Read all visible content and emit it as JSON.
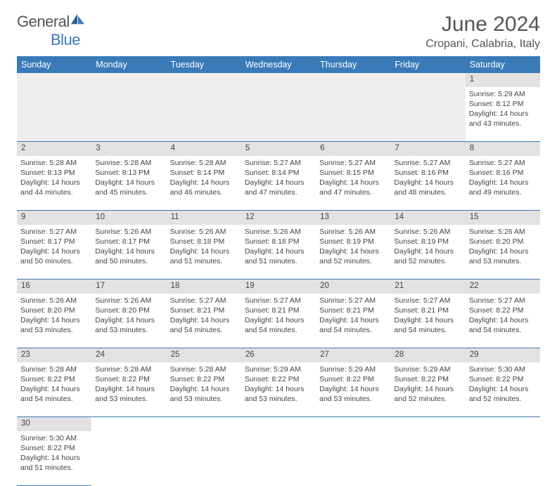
{
  "brand": {
    "name_a": "General",
    "name_b": "Blue"
  },
  "title": {
    "month": "June 2024",
    "location": "Cropani, Calabria, Italy"
  },
  "colors": {
    "header_bg": "#3a7ab8",
    "daynum_bg": "#e2e2e2",
    "border": "#3a7ab8"
  },
  "day_headers": [
    "Sunday",
    "Monday",
    "Tuesday",
    "Wednesday",
    "Thursday",
    "Friday",
    "Saturday"
  ],
  "weeks": [
    [
      null,
      null,
      null,
      null,
      null,
      null,
      {
        "n": "1",
        "sr": "Sunrise: 5:29 AM",
        "ss": "Sunset: 8:12 PM",
        "d1": "Daylight: 14 hours",
        "d2": "and 43 minutes."
      }
    ],
    [
      {
        "n": "2",
        "sr": "Sunrise: 5:28 AM",
        "ss": "Sunset: 8:13 PM",
        "d1": "Daylight: 14 hours",
        "d2": "and 44 minutes."
      },
      {
        "n": "3",
        "sr": "Sunrise: 5:28 AM",
        "ss": "Sunset: 8:13 PM",
        "d1": "Daylight: 14 hours",
        "d2": "and 45 minutes."
      },
      {
        "n": "4",
        "sr": "Sunrise: 5:28 AM",
        "ss": "Sunset: 8:14 PM",
        "d1": "Daylight: 14 hours",
        "d2": "and 46 minutes."
      },
      {
        "n": "5",
        "sr": "Sunrise: 5:27 AM",
        "ss": "Sunset: 8:14 PM",
        "d1": "Daylight: 14 hours",
        "d2": "and 47 minutes."
      },
      {
        "n": "6",
        "sr": "Sunrise: 5:27 AM",
        "ss": "Sunset: 8:15 PM",
        "d1": "Daylight: 14 hours",
        "d2": "and 47 minutes."
      },
      {
        "n": "7",
        "sr": "Sunrise: 5:27 AM",
        "ss": "Sunset: 8:16 PM",
        "d1": "Daylight: 14 hours",
        "d2": "and 48 minutes."
      },
      {
        "n": "8",
        "sr": "Sunrise: 5:27 AM",
        "ss": "Sunset: 8:16 PM",
        "d1": "Daylight: 14 hours",
        "d2": "and 49 minutes."
      }
    ],
    [
      {
        "n": "9",
        "sr": "Sunrise: 5:27 AM",
        "ss": "Sunset: 8:17 PM",
        "d1": "Daylight: 14 hours",
        "d2": "and 50 minutes."
      },
      {
        "n": "10",
        "sr": "Sunrise: 5:26 AM",
        "ss": "Sunset: 8:17 PM",
        "d1": "Daylight: 14 hours",
        "d2": "and 50 minutes."
      },
      {
        "n": "11",
        "sr": "Sunrise: 5:26 AM",
        "ss": "Sunset: 8:18 PM",
        "d1": "Daylight: 14 hours",
        "d2": "and 51 minutes."
      },
      {
        "n": "12",
        "sr": "Sunrise: 5:26 AM",
        "ss": "Sunset: 8:18 PM",
        "d1": "Daylight: 14 hours",
        "d2": "and 51 minutes."
      },
      {
        "n": "13",
        "sr": "Sunrise: 5:26 AM",
        "ss": "Sunset: 8:19 PM",
        "d1": "Daylight: 14 hours",
        "d2": "and 52 minutes."
      },
      {
        "n": "14",
        "sr": "Sunrise: 5:26 AM",
        "ss": "Sunset: 8:19 PM",
        "d1": "Daylight: 14 hours",
        "d2": "and 52 minutes."
      },
      {
        "n": "15",
        "sr": "Sunrise: 5:26 AM",
        "ss": "Sunset: 8:20 PM",
        "d1": "Daylight: 14 hours",
        "d2": "and 53 minutes."
      }
    ],
    [
      {
        "n": "16",
        "sr": "Sunrise: 5:26 AM",
        "ss": "Sunset: 8:20 PM",
        "d1": "Daylight: 14 hours",
        "d2": "and 53 minutes."
      },
      {
        "n": "17",
        "sr": "Sunrise: 5:26 AM",
        "ss": "Sunset: 8:20 PM",
        "d1": "Daylight: 14 hours",
        "d2": "and 53 minutes."
      },
      {
        "n": "18",
        "sr": "Sunrise: 5:27 AM",
        "ss": "Sunset: 8:21 PM",
        "d1": "Daylight: 14 hours",
        "d2": "and 54 minutes."
      },
      {
        "n": "19",
        "sr": "Sunrise: 5:27 AM",
        "ss": "Sunset: 8:21 PM",
        "d1": "Daylight: 14 hours",
        "d2": "and 54 minutes."
      },
      {
        "n": "20",
        "sr": "Sunrise: 5:27 AM",
        "ss": "Sunset: 8:21 PM",
        "d1": "Daylight: 14 hours",
        "d2": "and 54 minutes."
      },
      {
        "n": "21",
        "sr": "Sunrise: 5:27 AM",
        "ss": "Sunset: 8:21 PM",
        "d1": "Daylight: 14 hours",
        "d2": "and 54 minutes."
      },
      {
        "n": "22",
        "sr": "Sunrise: 5:27 AM",
        "ss": "Sunset: 8:22 PM",
        "d1": "Daylight: 14 hours",
        "d2": "and 54 minutes."
      }
    ],
    [
      {
        "n": "23",
        "sr": "Sunrise: 5:28 AM",
        "ss": "Sunset: 8:22 PM",
        "d1": "Daylight: 14 hours",
        "d2": "and 54 minutes."
      },
      {
        "n": "24",
        "sr": "Sunrise: 5:28 AM",
        "ss": "Sunset: 8:22 PM",
        "d1": "Daylight: 14 hours",
        "d2": "and 53 minutes."
      },
      {
        "n": "25",
        "sr": "Sunrise: 5:28 AM",
        "ss": "Sunset: 8:22 PM",
        "d1": "Daylight: 14 hours",
        "d2": "and 53 minutes."
      },
      {
        "n": "26",
        "sr": "Sunrise: 5:29 AM",
        "ss": "Sunset: 8:22 PM",
        "d1": "Daylight: 14 hours",
        "d2": "and 53 minutes."
      },
      {
        "n": "27",
        "sr": "Sunrise: 5:29 AM",
        "ss": "Sunset: 8:22 PM",
        "d1": "Daylight: 14 hours",
        "d2": "and 53 minutes."
      },
      {
        "n": "28",
        "sr": "Sunrise: 5:29 AM",
        "ss": "Sunset: 8:22 PM",
        "d1": "Daylight: 14 hours",
        "d2": "and 52 minutes."
      },
      {
        "n": "29",
        "sr": "Sunrise: 5:30 AM",
        "ss": "Sunset: 8:22 PM",
        "d1": "Daylight: 14 hours",
        "d2": "and 52 minutes."
      }
    ],
    [
      {
        "n": "30",
        "sr": "Sunrise: 5:30 AM",
        "ss": "Sunset: 8:22 PM",
        "d1": "Daylight: 14 hours",
        "d2": "and 51 minutes."
      },
      null,
      null,
      null,
      null,
      null,
      null
    ]
  ]
}
